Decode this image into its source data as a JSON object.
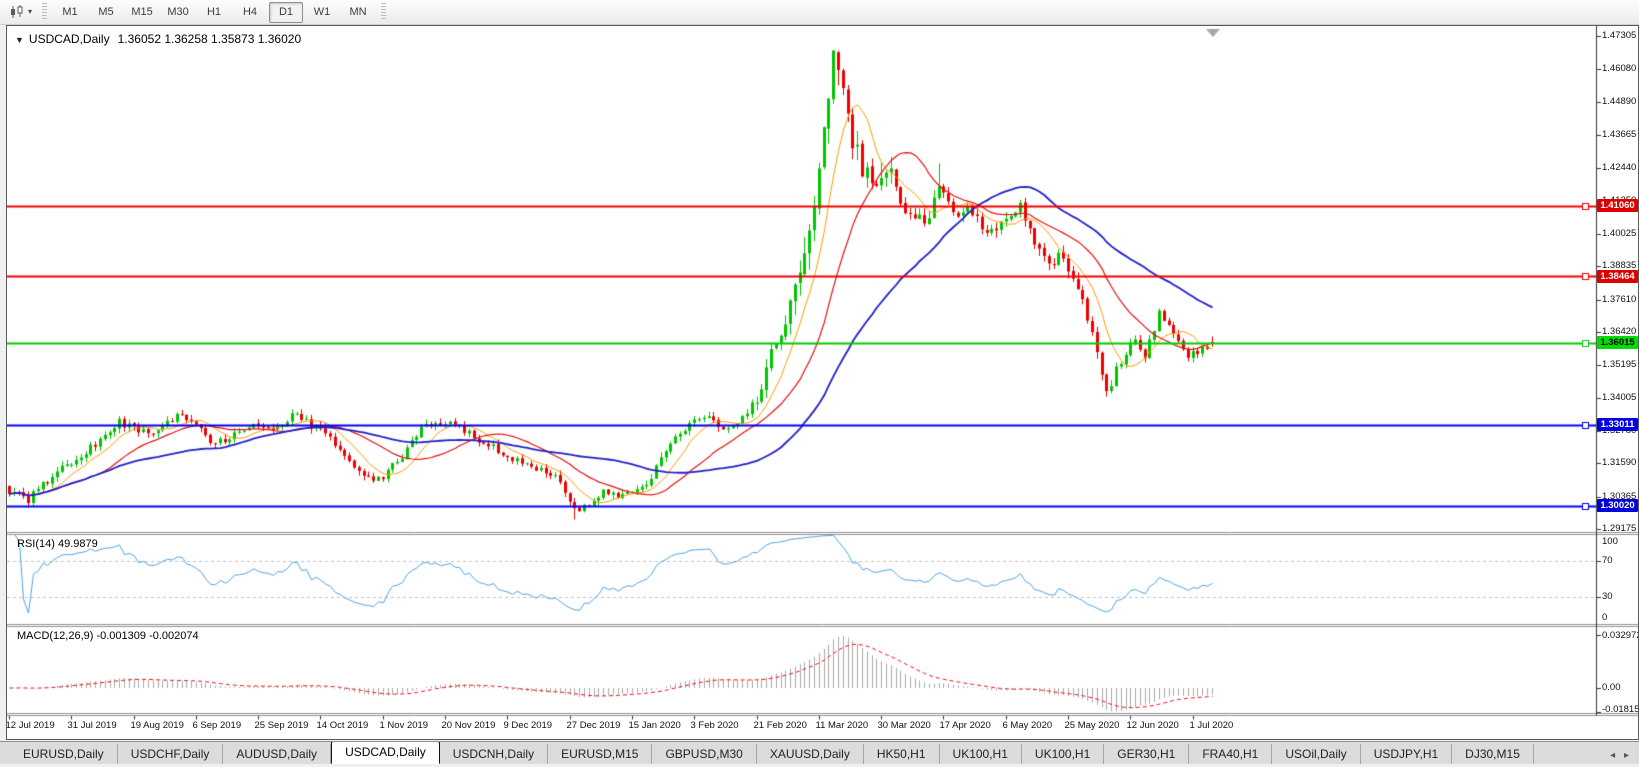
{
  "icons": {
    "dropdown": "▼",
    "toolbar_caret": "▾",
    "tab_prev": "◂",
    "tab_next": "▸"
  },
  "toolbar": {
    "timeframes": [
      "M1",
      "M5",
      "M15",
      "M30",
      "H1",
      "H4",
      "D1",
      "W1",
      "MN"
    ],
    "active_timeframe": "D1"
  },
  "chart": {
    "symbol_period": "USDCAD,Daily",
    "ohlc": "1.36052 1.36258 1.35873 1.36020",
    "open": "1.36052",
    "high": "1.36258",
    "low": "1.35873",
    "close": "1.36020"
  },
  "price_axis": {
    "ticks": [
      "1.47305",
      "1.46080",
      "1.44890",
      "1.43665",
      "1.42440",
      "1.41250",
      "1.40025",
      "1.38835",
      "1.37610",
      "1.36420",
      "1.35195",
      "1.34005",
      "1.32780",
      "1.31590",
      "1.30365",
      "1.29175"
    ],
    "tags": [
      {
        "value": "1.41060",
        "bg": "#dd0000",
        "fg": "#ffffff"
      },
      {
        "value": "1.38464",
        "bg": "#dd0000",
        "fg": "#ffffff"
      },
      {
        "value": "1.36015",
        "bg": "#00dd00",
        "fg": "#000000"
      },
      {
        "value": "1.33011",
        "bg": "#0000dd",
        "fg": "#ffffff"
      },
      {
        "value": "1.30020",
        "bg": "#0000dd",
        "fg": "#ffffff"
      }
    ]
  },
  "rsi": {
    "label": "RSI(14) 49.9879",
    "scale_labels": [
      "100",
      "70",
      "30",
      "0"
    ]
  },
  "macd": {
    "label": "MACD(12,26,9) -0.001309 -0.002074",
    "scale_labels": [
      "0.032972",
      "0.00",
      "-0.018154"
    ]
  },
  "date_axis": {
    "labels": [
      "12 Jul 2019",
      "31 Jul 2019",
      "19 Aug 2019",
      "6 Sep 2019",
      "25 Sep 2019",
      "14 Oct 2019",
      "1 Nov 2019",
      "20 Nov 2019",
      "9 Dec 2019",
      "27 Dec 2019",
      "15 Jan 2020",
      "3 Feb 2020",
      "21 Feb 2020",
      "11 Mar 2020",
      "30 Mar 2020",
      "17 Apr 2020",
      "6 May 2020",
      "25 May 2020",
      "12 Jun 2020",
      "1 Jul 2020"
    ]
  },
  "tabs": {
    "items": [
      "EURUSD,Daily",
      "USDCHF,Daily",
      "AUDUSD,Daily",
      "USDCAD,Daily",
      "USDCNH,Daily",
      "EURUSD,M15",
      "GBPUSD,M30",
      "XAUUSD,Daily",
      "HK50,H1",
      "UK100,H1",
      "UK100,H1",
      "GER30,H1",
      "FRA40,H1",
      "USOil,Daily",
      "USDJPY,H1",
      "DJ30,M15"
    ],
    "active_index": 3
  },
  "chart_data": {
    "type": "candlestick",
    "symbol": "USDCAD",
    "timeframe": "Daily",
    "days": 252,
    "visible_price_range": [
      1.2906,
      1.4768
    ],
    "candle_up_color": "#00c400",
    "candle_down_color": "#ee0000",
    "close_anchors": [
      [
        0,
        1.306
      ],
      [
        4,
        1.3025
      ],
      [
        10,
        1.313
      ],
      [
        17,
        1.3215
      ],
      [
        23,
        1.331
      ],
      [
        29,
        1.3265
      ],
      [
        35,
        1.334
      ],
      [
        39,
        1.329
      ],
      [
        43,
        1.323
      ],
      [
        47,
        1.327
      ],
      [
        51,
        1.33
      ],
      [
        55,
        1.327
      ],
      [
        59,
        1.334
      ],
      [
        63,
        1.33
      ],
      [
        67,
        1.3255
      ],
      [
        73,
        1.3135
      ],
      [
        77,
        1.3095
      ],
      [
        82,
        1.318
      ],
      [
        86,
        1.3295
      ],
      [
        92,
        1.33
      ],
      [
        97,
        1.326
      ],
      [
        101,
        1.3215
      ],
      [
        107,
        1.316
      ],
      [
        114,
        1.3115
      ],
      [
        118,
        1.2985
      ],
      [
        121,
        1.2995
      ],
      [
        124,
        1.3055
      ],
      [
        129,
        1.304
      ],
      [
        134,
        1.3105
      ],
      [
        138,
        1.323
      ],
      [
        141,
        1.329
      ],
      [
        145,
        1.3335
      ],
      [
        149,
        1.329
      ],
      [
        153,
        1.332
      ],
      [
        156,
        1.3405
      ],
      [
        159,
        1.356
      ],
      [
        162,
        1.369
      ],
      [
        165,
        1.381
      ],
      [
        168,
        1.412
      ],
      [
        170,
        1.44
      ],
      [
        172,
        1.463
      ],
      [
        174,
        1.45
      ],
      [
        177,
        1.428
      ],
      [
        180,
        1.416
      ],
      [
        183,
        1.427
      ],
      [
        187,
        1.409
      ],
      [
        191,
        1.404
      ],
      [
        194,
        1.417
      ],
      [
        197,
        1.408
      ],
      [
        201,
        1.409
      ],
      [
        204,
        1.399
      ],
      [
        208,
        1.405
      ],
      [
        211,
        1.41
      ],
      [
        214,
        1.398
      ],
      [
        217,
        1.389
      ],
      [
        220,
        1.392
      ],
      [
        223,
        1.381
      ],
      [
        226,
        1.364
      ],
      [
        229,
        1.343
      ],
      [
        232,
        1.353
      ],
      [
        235,
        1.362
      ],
      [
        237,
        1.356
      ],
      [
        240,
        1.371
      ],
      [
        243,
        1.364
      ],
      [
        246,
        1.3555
      ],
      [
        249,
        1.358
      ],
      [
        251,
        1.3602
      ]
    ],
    "volatility": [
      {
        "until": 156,
        "vol": 0.0033
      },
      {
        "until": 163,
        "vol": 0.0062
      },
      {
        "until": 186,
        "vol": 0.0115
      },
      {
        "until": 232,
        "vol": 0.0052
      },
      {
        "until": 252,
        "vol": 0.0033
      }
    ],
    "overrides": {
      "118": {
        "low": 1.2952
      },
      "172": {
        "high": 1.4668
      },
      "194": {
        "high": 1.4262
      },
      "251": {
        "open": 1.36052,
        "high": 1.36258,
        "low": 1.35873,
        "close": 1.3602
      }
    },
    "moving_averages": [
      {
        "period": 8,
        "color": "#ff9a00",
        "width": 1
      },
      {
        "period": 20,
        "color": "#e81010",
        "width": 1.2
      },
      {
        "period": 45,
        "color": "#2020c8",
        "width": 1.8
      }
    ],
    "horizontal_lines": [
      {
        "price": 1.4106,
        "color": "#ee0000"
      },
      {
        "price": 1.38464,
        "color": "#ee0000"
      },
      {
        "price": 1.36015,
        "color": "#00cc00"
      },
      {
        "price": 1.33011,
        "color": "#0000ee"
      },
      {
        "price": 1.3002,
        "color": "#0000ee"
      }
    ],
    "rsi": {
      "period": 14,
      "color": "#4da2e8",
      "levels": [
        70,
        30
      ]
    },
    "macd": {
      "fast": 12,
      "slow": 26,
      "signal": 9,
      "histogram_color": "#a9a9a9",
      "signal_color": "#e81010"
    }
  }
}
